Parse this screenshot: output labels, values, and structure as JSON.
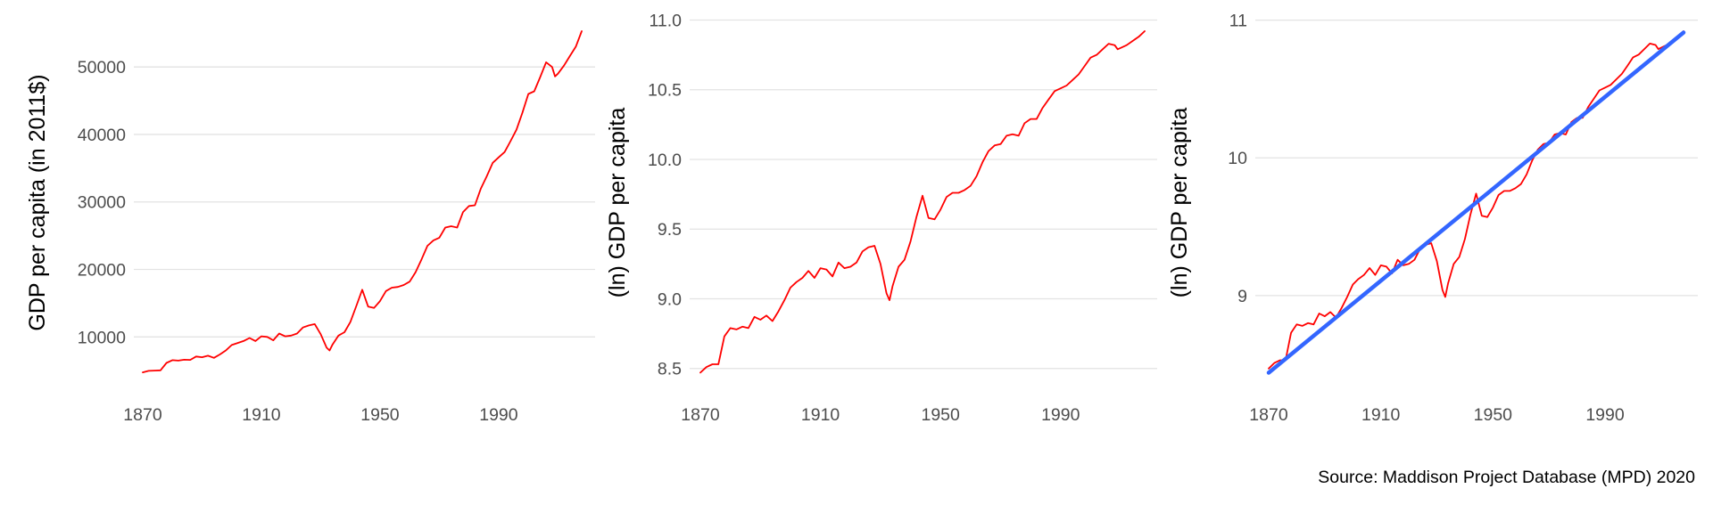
{
  "caption": "Source: Maddison Project Database (MPD) 2020",
  "colors": {
    "series": "#ff0000",
    "fit": "#3366ff",
    "grid": "#e3e3e3",
    "tick_text": "#4d4d4d"
  },
  "chart_data": [
    {
      "type": "line",
      "title": "",
      "xlabel": "",
      "ylabel": "GDP per capita (in 2011$)",
      "xlim": [
        1870,
        2018
      ],
      "ylim": [
        4500,
        55300
      ],
      "x_ticks": [
        1870,
        1910,
        1950,
        1990
      ],
      "x_tick_labels": [
        "1870",
        "1910",
        "1950",
        "1990"
      ],
      "y_ticks": [
        10000,
        20000,
        30000,
        40000,
        50000
      ],
      "y_tick_labels": [
        "10000",
        "20000",
        "30000",
        "40000",
        "50000"
      ],
      "grid": true,
      "series": [
        {
          "color": "#ff0000",
          "x": [
            1870,
            1872,
            1874,
            1876,
            1878,
            1880,
            1882,
            1884,
            1886,
            1888,
            1890,
            1892,
            1894,
            1896,
            1898,
            1900,
            1902,
            1904,
            1906,
            1908,
            1910,
            1912,
            1914,
            1916,
            1918,
            1920,
            1922,
            1924,
            1926,
            1928,
            1930,
            1932,
            1933,
            1934,
            1936,
            1938,
            1940,
            1942,
            1944,
            1946,
            1948,
            1950,
            1952,
            1954,
            1956,
            1958,
            1960,
            1962,
            1964,
            1966,
            1968,
            1970,
            1972,
            1974,
            1976,
            1978,
            1980,
            1982,
            1984,
            1986,
            1988,
            1990,
            1992,
            1994,
            1996,
            1998,
            2000,
            2002,
            2004,
            2006,
            2008,
            2009,
            2010,
            2012,
            2014,
            2016,
            2018
          ],
          "y": [
            4750,
            4980,
            5020,
            5060,
            6150,
            6560,
            6490,
            6630,
            6600,
            7100,
            7000,
            7220,
            6900,
            7400,
            8000,
            8800,
            9100,
            9400,
            9850,
            9400,
            10100,
            10000,
            9500,
            10500,
            10100,
            10200,
            10500,
            11400,
            11700,
            11900,
            10400,
            8400,
            8000,
            8900,
            10200,
            10700,
            12200,
            14600,
            17000,
            14500,
            14300,
            15300,
            16800,
            17300,
            17400,
            17700,
            18200,
            19600,
            21500,
            23500,
            24300,
            24700,
            26200,
            26400,
            26200,
            28500,
            29400,
            29500,
            32000,
            33800,
            35800,
            36600,
            37400,
            39000,
            40700,
            43200,
            46000,
            46400,
            48500,
            50700,
            50000,
            48600,
            49000,
            50200,
            51600,
            53000,
            55300
          ]
        }
      ]
    },
    {
      "type": "line",
      "title": "",
      "xlabel": "",
      "ylabel": "(ln) GDP per capita",
      "xlim": [
        1870,
        2018
      ],
      "ylim": [
        8.46,
        10.92
      ],
      "x_ticks": [
        1870,
        1910,
        1950,
        1990
      ],
      "x_tick_labels": [
        "1870",
        "1910",
        "1950",
        "1990"
      ],
      "y_ticks": [
        8.5,
        9.0,
        9.5,
        10.0,
        10.5,
        11.0
      ],
      "y_tick_labels": [
        "8.5",
        "9.0",
        "9.5",
        "10.0",
        "10.5",
        "11.0"
      ],
      "grid": true,
      "series": [
        {
          "color": "#ff0000",
          "x": [
            1870,
            1872,
            1874,
            1876,
            1878,
            1880,
            1882,
            1884,
            1886,
            1888,
            1890,
            1892,
            1894,
            1896,
            1898,
            1900,
            1902,
            1904,
            1906,
            1908,
            1910,
            1912,
            1914,
            1916,
            1918,
            1920,
            1922,
            1924,
            1926,
            1928,
            1930,
            1932,
            1933,
            1934,
            1936,
            1938,
            1940,
            1942,
            1944,
            1946,
            1948,
            1950,
            1952,
            1954,
            1956,
            1958,
            1960,
            1962,
            1964,
            1966,
            1968,
            1970,
            1972,
            1974,
            1976,
            1978,
            1980,
            1982,
            1984,
            1986,
            1988,
            1990,
            1992,
            1994,
            1996,
            1998,
            2000,
            2002,
            2004,
            2006,
            2008,
            2009,
            2010,
            2012,
            2014,
            2016,
            2018
          ],
          "y": [
            8.47,
            8.51,
            8.53,
            8.53,
            8.73,
            8.79,
            8.78,
            8.8,
            8.79,
            8.87,
            8.85,
            8.88,
            8.84,
            8.91,
            8.99,
            9.08,
            9.12,
            9.15,
            9.2,
            9.15,
            9.22,
            9.21,
            9.16,
            9.26,
            9.22,
            9.23,
            9.26,
            9.34,
            9.37,
            9.38,
            9.25,
            9.04,
            8.99,
            9.09,
            9.23,
            9.28,
            9.41,
            9.59,
            9.74,
            9.58,
            9.57,
            9.64,
            9.73,
            9.76,
            9.76,
            9.78,
            9.81,
            9.88,
            9.98,
            10.06,
            10.1,
            10.11,
            10.17,
            10.18,
            10.17,
            10.26,
            10.29,
            10.29,
            10.37,
            10.43,
            10.49,
            10.51,
            10.53,
            10.57,
            10.61,
            10.67,
            10.73,
            10.75,
            10.79,
            10.83,
            10.82,
            10.79,
            10.8,
            10.82,
            10.85,
            10.88,
            10.92
          ]
        }
      ]
    },
    {
      "type": "line",
      "title": "",
      "xlabel": "",
      "ylabel": "(ln) GDP per capita",
      "xlim": [
        1870,
        2018
      ],
      "ylim": [
        8.43,
        10.92
      ],
      "x_ticks": [
        1870,
        1910,
        1950,
        1990
      ],
      "x_tick_labels": [
        "1870",
        "1910",
        "1950",
        "1990"
      ],
      "y_ticks": [
        9,
        10,
        11
      ],
      "y_tick_labels": [
        "9",
        "10",
        "11"
      ],
      "grid": true,
      "series": [
        {
          "color": "#ff0000",
          "x": [
            1870,
            1872,
            1874,
            1876,
            1878,
            1880,
            1882,
            1884,
            1886,
            1888,
            1890,
            1892,
            1894,
            1896,
            1898,
            1900,
            1902,
            1904,
            1906,
            1908,
            1910,
            1912,
            1914,
            1916,
            1918,
            1920,
            1922,
            1924,
            1926,
            1928,
            1930,
            1932,
            1933,
            1934,
            1936,
            1938,
            1940,
            1942,
            1944,
            1946,
            1948,
            1950,
            1952,
            1954,
            1956,
            1958,
            1960,
            1962,
            1964,
            1966,
            1968,
            1970,
            1972,
            1974,
            1976,
            1978,
            1980,
            1982,
            1984,
            1986,
            1988,
            1990,
            1992,
            1994,
            1996,
            1998,
            2000,
            2002,
            2004,
            2006,
            2008,
            2009,
            2010,
            2012,
            2014,
            2016,
            2018
          ],
          "y": [
            8.47,
            8.51,
            8.53,
            8.53,
            8.73,
            8.79,
            8.78,
            8.8,
            8.79,
            8.87,
            8.85,
            8.88,
            8.84,
            8.91,
            8.99,
            9.08,
            9.12,
            9.15,
            9.2,
            9.15,
            9.22,
            9.21,
            9.16,
            9.26,
            9.22,
            9.23,
            9.26,
            9.34,
            9.37,
            9.38,
            9.25,
            9.04,
            8.99,
            9.09,
            9.23,
            9.28,
            9.41,
            9.59,
            9.74,
            9.58,
            9.57,
            9.64,
            9.73,
            9.76,
            9.76,
            9.78,
            9.81,
            9.88,
            9.98,
            10.06,
            10.1,
            10.11,
            10.17,
            10.18,
            10.17,
            10.26,
            10.29,
            10.29,
            10.37,
            10.43,
            10.49,
            10.51,
            10.53,
            10.57,
            10.61,
            10.67,
            10.73,
            10.75,
            10.79,
            10.83,
            10.82,
            10.79,
            10.8,
            10.82,
            10.85,
            10.88,
            10.92
          ]
        }
      ],
      "trend_line": {
        "color": "#3366ff",
        "x": [
          1870,
          2018
        ],
        "y": [
          8.44,
          10.91
        ]
      }
    }
  ]
}
